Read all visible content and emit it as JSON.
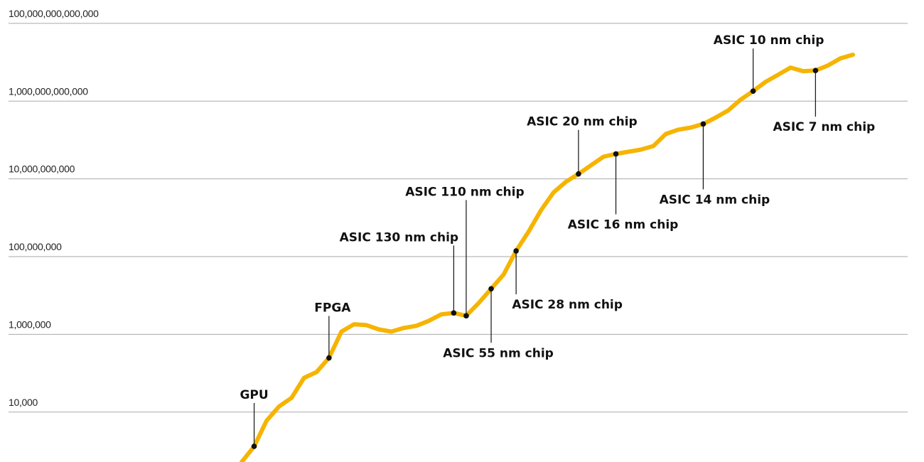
{
  "chart_data": {
    "type": "line",
    "log_y": true,
    "grid": true,
    "color": "#f6b400",
    "ylim": [
      520,
      400000000000000
    ],
    "yticks": [
      {
        "value": 10000,
        "label": "10,000"
      },
      {
        "value": 1000000,
        "label": "1,000,000"
      },
      {
        "value": 100000000,
        "label": "100,000,000"
      },
      {
        "value": 10000000000,
        "label": "10,000,000,000"
      },
      {
        "value": 1000000000000,
        "label": "1,000,000,000,000"
      },
      {
        "value": 100000000000000,
        "label": "100,000,000,000,000"
      }
    ],
    "categories": [
      null,
      "GPU",
      null,
      null,
      null,
      null,
      null,
      "FPGA",
      null,
      null,
      null,
      null,
      null,
      null,
      null,
      null,
      null,
      "ASIC 130 nm chip",
      "ASIC 110 nm chip",
      null,
      "ASIC 55 nm chip",
      null,
      "ASIC 28 nm chip",
      null,
      null,
      null,
      null,
      "ASIC 20 nm chip",
      null,
      null,
      "ASIC 16 nm chip",
      null,
      null,
      null,
      null,
      null,
      null,
      "ASIC 14 nm chip",
      null,
      null,
      null,
      "ASIC 10 nm chip",
      null,
      null,
      null,
      null,
      "ASIC 7 nm chip",
      null,
      null,
      null
    ],
    "values": [
      520,
      1315,
      6030,
      14000,
      23300,
      76000,
      107000,
      248000,
      1180000,
      1810000,
      1730000,
      1340000,
      1180000,
      1460000,
      1660000,
      2230000,
      3270000,
      3550000,
      3000000,
      6410000,
      14900000,
      34800000,
      140000000,
      439000000,
      1560000000,
      4480000000,
      8450000000,
      13400000000,
      22300000000,
      37100000000,
      43900000000,
      49800000000,
      56500000000,
      69800000000,
      143000000000,
      185000000000,
      209000000000,
      259000000000,
      378000000000,
      577000000000,
      1090000000000,
      1810000000000,
      3130000000000,
      4770000000000,
      7280000000000,
      5900000000000,
      6150000000000,
      8270000000000,
      12600000000000,
      15600000000000
    ]
  }
}
